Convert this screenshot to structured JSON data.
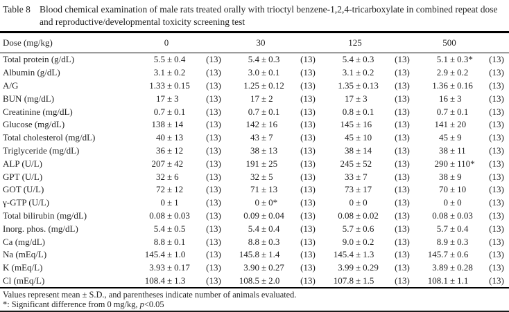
{
  "caption": {
    "label": "Table 8",
    "text": "Blood chemical examination of male rats treated orally with trioctyl benzene-1,2,4-tricarboxylate in combined repeat dose and reproductive/developmental toxicity screening test"
  },
  "table": {
    "plus_minus": "±",
    "header": {
      "label": "Dose (mg/kg)",
      "doses": [
        "0",
        "30",
        "125",
        "500"
      ]
    },
    "rows": [
      {
        "label": "Total protein (g/dL)",
        "cells": [
          {
            "m": "5.5",
            "s": "0.4",
            "n": "(13)"
          },
          {
            "m": "5.4",
            "s": "0.3",
            "n": "(13)"
          },
          {
            "m": "5.4",
            "s": "0.3",
            "n": "(13)"
          },
          {
            "m": "5.1",
            "s": "0.3*",
            "n": "(13)"
          }
        ]
      },
      {
        "label": "Albumin (g/dL)",
        "cells": [
          {
            "m": "3.1",
            "s": "0.2",
            "n": "(13)"
          },
          {
            "m": "3.0",
            "s": "0.1",
            "n": "(13)"
          },
          {
            "m": "3.1",
            "s": "0.2",
            "n": "(13)"
          },
          {
            "m": "2.9",
            "s": "0.2",
            "n": "(13)"
          }
        ]
      },
      {
        "label": "A/G",
        "cells": [
          {
            "m": "1.33",
            "s": "0.15",
            "n": "(13)"
          },
          {
            "m": "1.25",
            "s": "0.12",
            "n": "(13)"
          },
          {
            "m": "1.35",
            "s": "0.13",
            "n": "(13)"
          },
          {
            "m": "1.36",
            "s": "0.16",
            "n": "(13)"
          }
        ]
      },
      {
        "label": "BUN (mg/dL)",
        "cells": [
          {
            "m": "17",
            "s": "3",
            "n": "(13)"
          },
          {
            "m": "17",
            "s": "2",
            "n": "(13)"
          },
          {
            "m": "17",
            "s": "3",
            "n": "(13)"
          },
          {
            "m": "16",
            "s": "3",
            "n": "(13)"
          }
        ]
      },
      {
        "label": "Creatinine (mg/dL)",
        "cells": [
          {
            "m": "0.7",
            "s": "0.1",
            "n": "(13)"
          },
          {
            "m": "0.7",
            "s": "0.1",
            "n": "(13)"
          },
          {
            "m": "0.8",
            "s": "0.1",
            "n": "(13)"
          },
          {
            "m": "0.7",
            "s": "0.1",
            "n": "(13)"
          }
        ]
      },
      {
        "label": "Glucose (mg/dL)",
        "cells": [
          {
            "m": "138",
            "s": "14",
            "n": "(13)"
          },
          {
            "m": "142",
            "s": "16",
            "n": "(13)"
          },
          {
            "m": "145",
            "s": "16",
            "n": "(13)"
          },
          {
            "m": "141",
            "s": "20",
            "n": "(13)"
          }
        ]
      },
      {
        "label": "Total cholesterol (mg/dL)",
        "cells": [
          {
            "m": "40",
            "s": "13",
            "n": "(13)"
          },
          {
            "m": "43",
            "s": "7",
            "n": "(13)"
          },
          {
            "m": "45",
            "s": "10",
            "n": "(13)"
          },
          {
            "m": "45",
            "s": "9",
            "n": "(13)"
          }
        ]
      },
      {
        "label": "Triglyceride (mg/dL)",
        "cells": [
          {
            "m": "36",
            "s": "12",
            "n": "(13)"
          },
          {
            "m": "38",
            "s": "13",
            "n": "(13)"
          },
          {
            "m": "38",
            "s": "14",
            "n": "(13)"
          },
          {
            "m": "38",
            "s": "11",
            "n": "(13)"
          }
        ]
      },
      {
        "label": "ALP (U/L)",
        "cells": [
          {
            "m": "207",
            "s": "42",
            "n": "(13)"
          },
          {
            "m": "191",
            "s": "25",
            "n": "(13)"
          },
          {
            "m": "245",
            "s": "52",
            "n": "(13)"
          },
          {
            "m": "290",
            "s": "110*",
            "n": "(13)"
          }
        ]
      },
      {
        "label": "GPT (U/L)",
        "cells": [
          {
            "m": "32",
            "s": "6",
            "n": "(13)"
          },
          {
            "m": "32",
            "s": "5",
            "n": "(13)"
          },
          {
            "m": "33",
            "s": "7",
            "n": "(13)"
          },
          {
            "m": "38",
            "s": "9",
            "n": "(13)"
          }
        ]
      },
      {
        "label": "GOT (U/L)",
        "cells": [
          {
            "m": "72",
            "s": "12",
            "n": "(13)"
          },
          {
            "m": "71",
            "s": "13",
            "n": "(13)"
          },
          {
            "m": "73",
            "s": "17",
            "n": "(13)"
          },
          {
            "m": "70",
            "s": "10",
            "n": "(13)"
          }
        ]
      },
      {
        "label": "γ-GTP (U/L)",
        "cells": [
          {
            "m": "0",
            "s": "1",
            "n": "(13)"
          },
          {
            "m": "0",
            "s": "0*",
            "n": "(13)"
          },
          {
            "m": "0",
            "s": "0",
            "n": "(13)"
          },
          {
            "m": "0",
            "s": "0",
            "n": "(13)"
          }
        ]
      },
      {
        "label": "Total bilirubin (mg/dL)",
        "cells": [
          {
            "m": "0.08",
            "s": "0.03",
            "n": "(13)"
          },
          {
            "m": "0.09",
            "s": "0.04",
            "n": "(13)"
          },
          {
            "m": "0.08",
            "s": "0.02",
            "n": "(13)"
          },
          {
            "m": "0.08",
            "s": "0.03",
            "n": "(13)"
          }
        ]
      },
      {
        "label": "Inorg. phos. (mg/dL)",
        "cells": [
          {
            "m": "5.4",
            "s": "0.5",
            "n": "(13)"
          },
          {
            "m": "5.4",
            "s": "0.4",
            "n": "(13)"
          },
          {
            "m": "5.7",
            "s": "0.6",
            "n": "(13)"
          },
          {
            "m": "5.7",
            "s": "0.4",
            "n": "(13)"
          }
        ]
      },
      {
        "label": "Ca (mg/dL)",
        "cells": [
          {
            "m": "8.8",
            "s": "0.1",
            "n": "(13)"
          },
          {
            "m": "8.8",
            "s": "0.3",
            "n": "(13)"
          },
          {
            "m": "9.0",
            "s": "0.2",
            "n": "(13)"
          },
          {
            "m": "8.9",
            "s": "0.3",
            "n": "(13)"
          }
        ]
      },
      {
        "label": "Na (mEq/L)",
        "cells": [
          {
            "m": "145.4",
            "s": "1.0",
            "n": "(13)"
          },
          {
            "m": "145.8",
            "s": "1.4",
            "n": "(13)"
          },
          {
            "m": "145.4",
            "s": "1.3",
            "n": "(13)"
          },
          {
            "m": "145.7",
            "s": "0.6",
            "n": "(13)"
          }
        ]
      },
      {
        "label": "K (mEq/L)",
        "cells": [
          {
            "m": "3.93",
            "s": "0.17",
            "n": "(13)"
          },
          {
            "m": "3.90",
            "s": "0.27",
            "n": "(13)"
          },
          {
            "m": "3.99",
            "s": "0.29",
            "n": "(13)"
          },
          {
            "m": "3.89",
            "s": "0.28",
            "n": "(13)"
          }
        ]
      },
      {
        "label": "Cl (mEq/L)",
        "cells": [
          {
            "m": "108.4",
            "s": "1.3",
            "n": "(13)"
          },
          {
            "m": "108.5",
            "s": "2.0",
            "n": "(13)"
          },
          {
            "m": "107.8",
            "s": "1.5",
            "n": "(13)"
          },
          {
            "m": "108.1",
            "s": "1.1",
            "n": "(13)"
          }
        ]
      }
    ]
  },
  "footnotes": {
    "line1": "Values represent mean ± S.D., and parentheses indicate number of animals evaluated.",
    "line2_prefix": "*: Significant difference from 0 mg/kg, ",
    "line2_p": "p",
    "line2_suffix": "<0.05"
  },
  "colors": {
    "background": "#ffffff",
    "text": "#1f1f1f",
    "rule": "#000000"
  }
}
